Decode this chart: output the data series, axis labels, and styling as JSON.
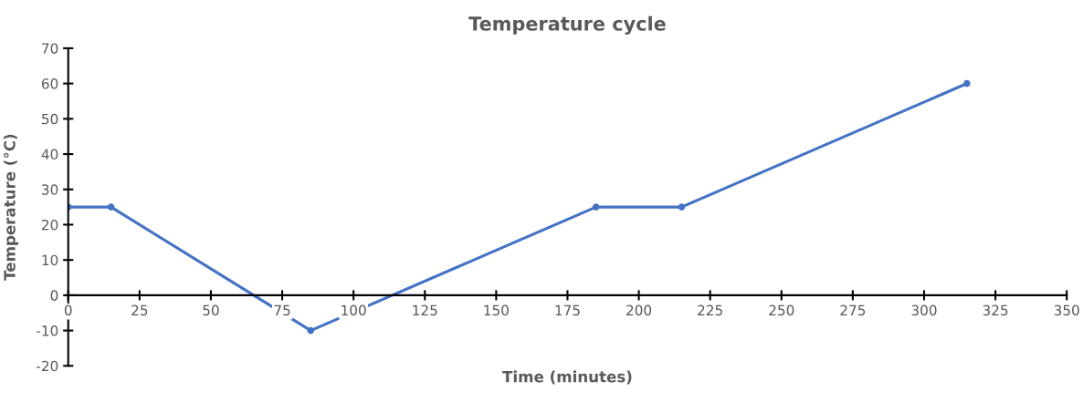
{
  "chart_data": {
    "type": "line",
    "title": "Temperature cycle",
    "xlabel": "Time (minutes)",
    "ylabel": "Temperature (°C)",
    "x": [
      0,
      15,
      85,
      185,
      215,
      315
    ],
    "series": [
      {
        "color": "#4472c4",
        "values": [
          25,
          25,
          -10,
          25,
          25,
          60
        ]
      }
    ],
    "xlim": [
      0,
      350
    ],
    "xticks": [
      0,
      25,
      50,
      75,
      100,
      125,
      150,
      175,
      200,
      225,
      250,
      275,
      300,
      325,
      350
    ],
    "ylim": [
      -20,
      70
    ],
    "yticks": [
      -20,
      -10,
      0,
      10,
      20,
      30,
      40,
      50,
      60,
      70
    ],
    "grid": false,
    "legend": false,
    "marker": "circle",
    "line_style": "solid"
  }
}
